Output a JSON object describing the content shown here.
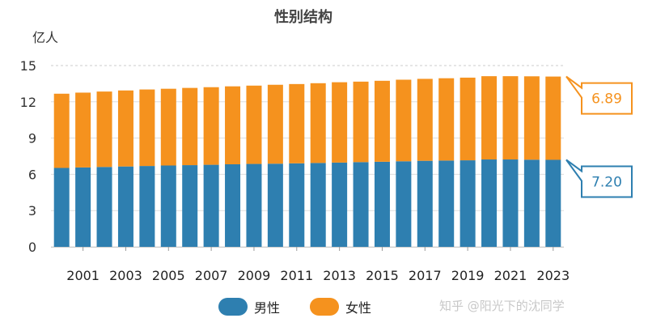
{
  "chart_data": {
    "type": "bar",
    "stacked": true,
    "title": "性别结构",
    "ylabel": "亿人",
    "xlabel": "",
    "ylim": [
      0,
      15
    ],
    "yticks": [
      "0",
      "3",
      "6",
      "9",
      "12",
      "15"
    ],
    "categories": [
      "2000",
      "2001",
      "2002",
      "2003",
      "2004",
      "2005",
      "2006",
      "2007",
      "2008",
      "2009",
      "2010",
      "2011",
      "2012",
      "2013",
      "2014",
      "2015",
      "2016",
      "2017",
      "2018",
      "2019",
      "2020",
      "2021",
      "2022",
      "2023"
    ],
    "xtick_labels": [
      "2001",
      "2003",
      "2005",
      "2007",
      "2009",
      "2011",
      "2013",
      "2015",
      "2017",
      "2019",
      "2021",
      "2023"
    ],
    "series": [
      {
        "name": "男性",
        "color": "#2e7fb0",
        "values": [
          6.53,
          6.57,
          6.61,
          6.65,
          6.69,
          6.73,
          6.76,
          6.79,
          6.83,
          6.86,
          6.88,
          6.91,
          6.94,
          6.97,
          7.01,
          7.04,
          7.08,
          7.12,
          7.14,
          7.16,
          7.23,
          7.23,
          7.21,
          7.2
        ]
      },
      {
        "name": "女性",
        "color": "#f5921e",
        "values": [
          6.14,
          6.19,
          6.24,
          6.29,
          6.33,
          6.35,
          6.39,
          6.42,
          6.45,
          6.48,
          6.53,
          6.56,
          6.6,
          6.65,
          6.66,
          6.7,
          6.75,
          6.78,
          6.81,
          6.84,
          6.89,
          6.89,
          6.9,
          6.89
        ]
      }
    ],
    "annotations": [
      {
        "label": "6.89",
        "series": "女性",
        "color": "#f5921e"
      },
      {
        "label": "7.20",
        "series": "男性",
        "color": "#2e7fb0"
      }
    ],
    "grid": true,
    "legend": "bottom"
  },
  "watermark": "知乎 @阳光下的沈同学"
}
